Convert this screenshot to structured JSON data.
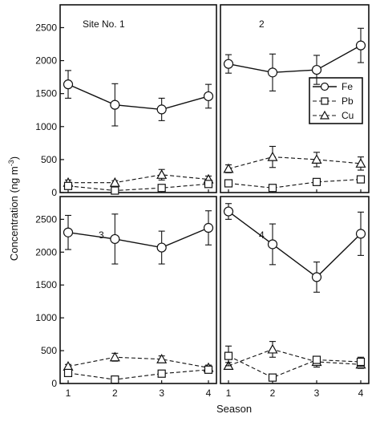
{
  "chart_data": {
    "type": "line",
    "layout": "2x2 panel grid, shared axes",
    "y_axis_label": "Concentration (ng m",
    "y_axis_label_sup": "-3",
    "y_axis_label_end": ")",
    "x_axis_label": "Season",
    "x_ticks": [
      1,
      2,
      3,
      4
    ],
    "ylim": [
      0,
      2700
    ],
    "y_ticks": [
      0,
      500,
      1000,
      1500,
      2000,
      2500
    ],
    "legend": {
      "placement": "panel 2, right side",
      "entries": [
        {
          "name": "Fe",
          "marker": "circle",
          "line": "solid"
        },
        {
          "name": "Pb",
          "marker": "square",
          "line": "dashed"
        },
        {
          "name": "Cu",
          "marker": "triangle",
          "line": "dashed"
        }
      ]
    },
    "panels": [
      {
        "label": "Site No. 1",
        "series": [
          {
            "name": "Fe",
            "x": [
              1,
              2,
              3,
              4
            ],
            "y": [
              1640,
              1330,
              1260,
              1460
            ],
            "err": [
              210,
              320,
              170,
              180
            ]
          },
          {
            "name": "Pb",
            "x": [
              1,
              2,
              3,
              4
            ],
            "y": [
              100,
              30,
              70,
              130
            ],
            "err": [
              0,
              0,
              0,
              0
            ]
          },
          {
            "name": "Cu",
            "x": [
              1,
              2,
              3,
              4
            ],
            "y": [
              150,
              150,
              270,
              200
            ],
            "err": [
              40,
              30,
              80,
              50
            ]
          }
        ]
      },
      {
        "label": "2",
        "series": [
          {
            "name": "Fe",
            "x": [
              1,
              2,
              3,
              4
            ],
            "y": [
              1950,
              1820,
              1860,
              2230
            ],
            "err": [
              140,
              280,
              220,
              260
            ]
          },
          {
            "name": "Pb",
            "x": [
              1,
              2,
              3,
              4
            ],
            "y": [
              140,
              70,
              160,
              200
            ],
            "err": [
              0,
              0,
              0,
              0
            ]
          },
          {
            "name": "Cu",
            "x": [
              1,
              2,
              3,
              4
            ],
            "y": [
              360,
              540,
              500,
              440
            ],
            "err": [
              60,
              160,
              110,
              100
            ]
          }
        ]
      },
      {
        "label": "3",
        "series": [
          {
            "name": "Fe",
            "x": [
              1,
              2,
              3,
              4
            ],
            "y": [
              2300,
              2200,
              2070,
              2370
            ],
            "err": [
              260,
              380,
              250,
              260
            ]
          },
          {
            "name": "Pb",
            "x": [
              1,
              2,
              3,
              4
            ],
            "y": [
              160,
              60,
              150,
              210
            ],
            "err": [
              0,
              0,
              0,
              0
            ]
          },
          {
            "name": "Cu",
            "x": [
              1,
              2,
              3,
              4
            ],
            "y": [
              260,
              400,
              370,
              240
            ],
            "err": [
              30,
              60,
              50,
              40
            ]
          }
        ]
      },
      {
        "label": "4",
        "series": [
          {
            "name": "Fe",
            "x": [
              1,
              2,
              3,
              4
            ],
            "y": [
              2620,
              2120,
              1620,
              2280
            ],
            "err": [
              120,
              310,
              230,
              330
            ]
          },
          {
            "name": "Pb",
            "x": [
              1,
              2,
              3,
              4
            ],
            "y": [
              420,
              90,
              360,
              330
            ],
            "err": [
              150,
              0,
              50,
              70
            ]
          },
          {
            "name": "Cu",
            "x": [
              1,
              2,
              3,
              4
            ],
            "y": [
              270,
              520,
              330,
              290
            ],
            "err": [
              50,
              120,
              80,
              60
            ]
          }
        ]
      }
    ]
  }
}
